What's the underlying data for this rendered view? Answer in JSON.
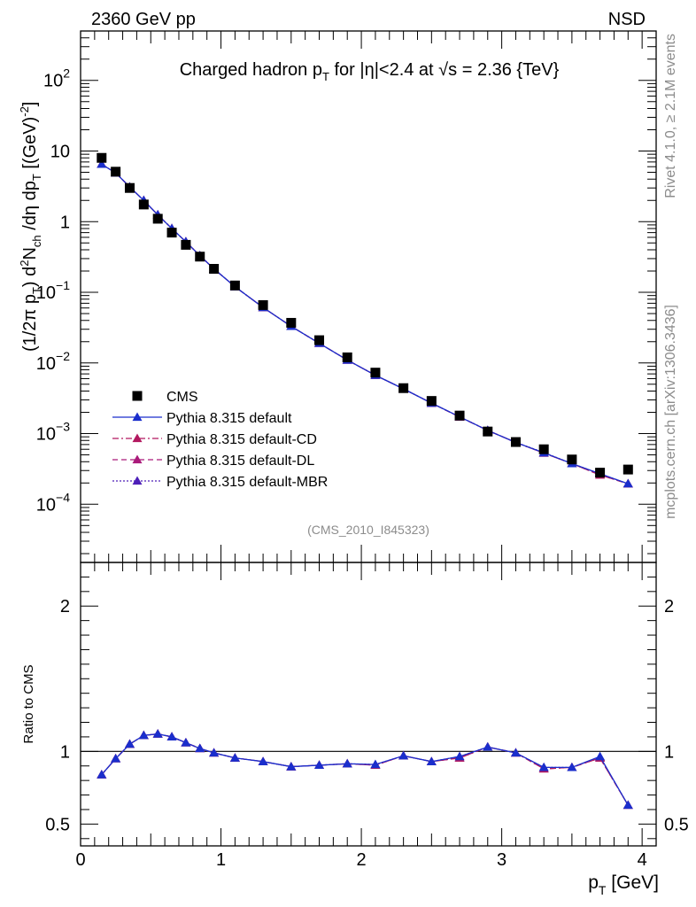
{
  "header": {
    "left": "2360 GeV pp",
    "right": "NSD",
    "side_top": "Rivet 4.1.0, ≥ 2.1M events",
    "side_bottom": "mcplots.cern.ch [arXiv:1306.3436]",
    "analysis_id": "(CMS_2010_I845323)"
  },
  "colors": {
    "data": "#000000",
    "default": "#1a2ecc",
    "default_cd": "#b2185f",
    "default_dl": "#aa1a7a",
    "default_mbr": "#4d1fb8",
    "analysis_grey": "#8c8c8c"
  },
  "chart_data": [
    {
      "type": "scatter",
      "title": "Charged hadron p_T for |η|<2.4 at √s = 2.36 {TeV}",
      "title_parts": {
        "a": "Charged hadron p",
        "sub": "T",
        "b": " for |η|<2.4 at ",
        "root": "√s",
        "c": " = 2.36 {TeV}"
      },
      "ylabel": "(1/2π p_T) d²N_ch/dη dp_T [(GeV)^-2]",
      "ylabel_parts": {
        "p1": "(1/2π p",
        "s1": "T",
        "p2": ") d",
        "e1": "2",
        "p3": "N",
        "s2": "ch",
        "p4": " /dη  dp",
        "s3": "T",
        "p5": " [(GeV)",
        "e2": "-2",
        "p6": "]"
      },
      "yscale": "log",
      "ylim": [
        1.5e-05,
        500
      ],
      "xlim": [
        0,
        4.1
      ],
      "y_tick_labels": [
        "10⁻⁴",
        "10⁻³",
        "10⁻²",
        "10⁻¹",
        "1",
        "10",
        "10²"
      ],
      "y_tick_label_parts": [
        {
          "base": "10",
          "exp": "−4"
        },
        {
          "base": "10",
          "exp": "−3"
        },
        {
          "base": "10",
          "exp": "−2"
        },
        {
          "base": "10",
          "exp": "−1"
        },
        {
          "base": "1",
          "exp": ""
        },
        {
          "base": "10",
          "exp": ""
        },
        {
          "base": "10",
          "exp": "2"
        }
      ],
      "y_tick_values": [
        0.0001,
        0.001,
        0.01,
        0.1,
        1,
        10,
        100
      ],
      "legend_position": "lower-left",
      "x": [
        0.15,
        0.25,
        0.35,
        0.45,
        0.55,
        0.65,
        0.75,
        0.85,
        0.95,
        1.1,
        1.3,
        1.5,
        1.7,
        1.9,
        2.1,
        2.3,
        2.5,
        2.7,
        2.9,
        3.1,
        3.3,
        3.5,
        3.7,
        3.9
      ],
      "series": [
        {
          "name": "CMS",
          "key": "data",
          "marker": "square",
          "line": "none",
          "values": [
            8.0,
            5.1,
            3.0,
            1.75,
            1.1,
            0.7,
            0.47,
            0.32,
            0.215,
            0.125,
            0.066,
            0.037,
            0.021,
            0.012,
            0.0073,
            0.0044,
            0.0029,
            0.0018,
            0.00107,
            0.00076,
            0.0006,
            0.00043,
            0.00028,
            0.00031
          ]
        },
        {
          "name": "Pythia 8.315 default",
          "key": "default",
          "marker": "triangle",
          "line": "solid",
          "values": [
            6.5,
            4.9,
            3.1,
            2.0,
            1.25,
            0.8,
            0.52,
            0.33,
            0.215,
            0.12,
            0.061,
            0.033,
            0.019,
            0.011,
            0.0067,
            0.0043,
            0.0027,
            0.00173,
            0.00111,
            0.00075,
            0.000535,
            0.000376,
            0.00027,
            0.000195
          ]
        },
        {
          "name": "Pythia 8.315 default-CD",
          "key": "default_cd",
          "marker": "triangle",
          "line": "dashdot",
          "values": [
            6.5,
            4.9,
            3.1,
            2.0,
            1.25,
            0.8,
            0.52,
            0.33,
            0.215,
            0.12,
            0.061,
            0.033,
            0.019,
            0.011,
            0.0067,
            0.0043,
            0.0027,
            0.00172,
            0.00111,
            0.00075,
            0.00053,
            0.000376,
            0.00026,
            0.000195
          ]
        },
        {
          "name": "Pythia 8.315 default-DL",
          "key": "default_dl",
          "marker": "triangle",
          "line": "dashed",
          "values": [
            6.5,
            4.9,
            3.1,
            2.0,
            1.25,
            0.8,
            0.52,
            0.33,
            0.215,
            0.12,
            0.061,
            0.033,
            0.019,
            0.011,
            0.0067,
            0.0043,
            0.0027,
            0.00172,
            0.00111,
            0.00075,
            0.00053,
            0.000376,
            0.00026,
            0.000195
          ]
        },
        {
          "name": "Pythia 8.315 default-MBR",
          "key": "default_mbr",
          "marker": "triangle",
          "line": "dotted",
          "values": [
            6.5,
            4.9,
            3.1,
            2.0,
            1.25,
            0.8,
            0.52,
            0.33,
            0.215,
            0.12,
            0.061,
            0.033,
            0.019,
            0.011,
            0.0067,
            0.0043,
            0.0027,
            0.00173,
            0.00111,
            0.00075,
            0.00054,
            0.000376,
            0.00027,
            0.000195
          ]
        }
      ]
    },
    {
      "type": "line",
      "title": "",
      "xlabel": "p_T [GeV]",
      "xlabel_parts": {
        "a": "p",
        "sub": "T",
        "b": " [GeV]"
      },
      "ylabel": "Ratio to CMS",
      "yscale": "linear",
      "ylim": [
        0.35,
        2.3
      ],
      "xlim": [
        0,
        4.1
      ],
      "x_tick_labels": [
        "0",
        "1",
        "2",
        "3",
        "4"
      ],
      "x_tick_values": [
        0,
        1,
        2,
        3,
        4
      ],
      "y_tick_labels": [
        "0.5",
        "1",
        "2"
      ],
      "y_tick_values": [
        0.5,
        1,
        2
      ],
      "reference_line": 1,
      "x": [
        0.15,
        0.25,
        0.35,
        0.45,
        0.55,
        0.65,
        0.75,
        0.85,
        0.95,
        1.1,
        1.3,
        1.5,
        1.7,
        1.9,
        2.1,
        2.3,
        2.5,
        2.7,
        2.9,
        3.1,
        3.3,
        3.5,
        3.7,
        3.9
      ],
      "series": [
        {
          "name": "Pythia 8.315 default",
          "key": "default",
          "values": [
            0.84,
            0.95,
            1.05,
            1.11,
            1.12,
            1.1,
            1.06,
            1.02,
            0.99,
            0.955,
            0.93,
            0.895,
            0.905,
            0.915,
            0.91,
            0.97,
            0.93,
            0.965,
            1.03,
            0.99,
            0.89,
            0.89,
            0.965,
            0.63
          ]
        },
        {
          "name": "Pythia 8.315 default-CD",
          "key": "default_cd",
          "values": [
            0.84,
            0.95,
            1.05,
            1.11,
            1.12,
            1.1,
            1.06,
            1.02,
            0.99,
            0.955,
            0.93,
            0.895,
            0.905,
            0.915,
            0.905,
            0.97,
            0.93,
            0.955,
            1.03,
            0.99,
            0.88,
            0.89,
            0.955,
            0.63
          ]
        },
        {
          "name": "Pythia 8.315 default-DL",
          "key": "default_dl",
          "values": [
            0.84,
            0.95,
            1.05,
            1.11,
            1.12,
            1.1,
            1.06,
            1.02,
            0.99,
            0.955,
            0.93,
            0.895,
            0.905,
            0.915,
            0.905,
            0.97,
            0.93,
            0.955,
            1.03,
            0.99,
            0.88,
            0.89,
            0.955,
            0.63
          ]
        },
        {
          "name": "Pythia 8.315 default-MBR",
          "key": "default_mbr",
          "values": [
            0.84,
            0.95,
            1.05,
            1.11,
            1.12,
            1.1,
            1.06,
            1.02,
            0.99,
            0.955,
            0.93,
            0.895,
            0.905,
            0.915,
            0.91,
            0.97,
            0.93,
            0.965,
            1.03,
            0.99,
            0.89,
            0.89,
            0.96,
            0.63
          ]
        }
      ]
    }
  ]
}
